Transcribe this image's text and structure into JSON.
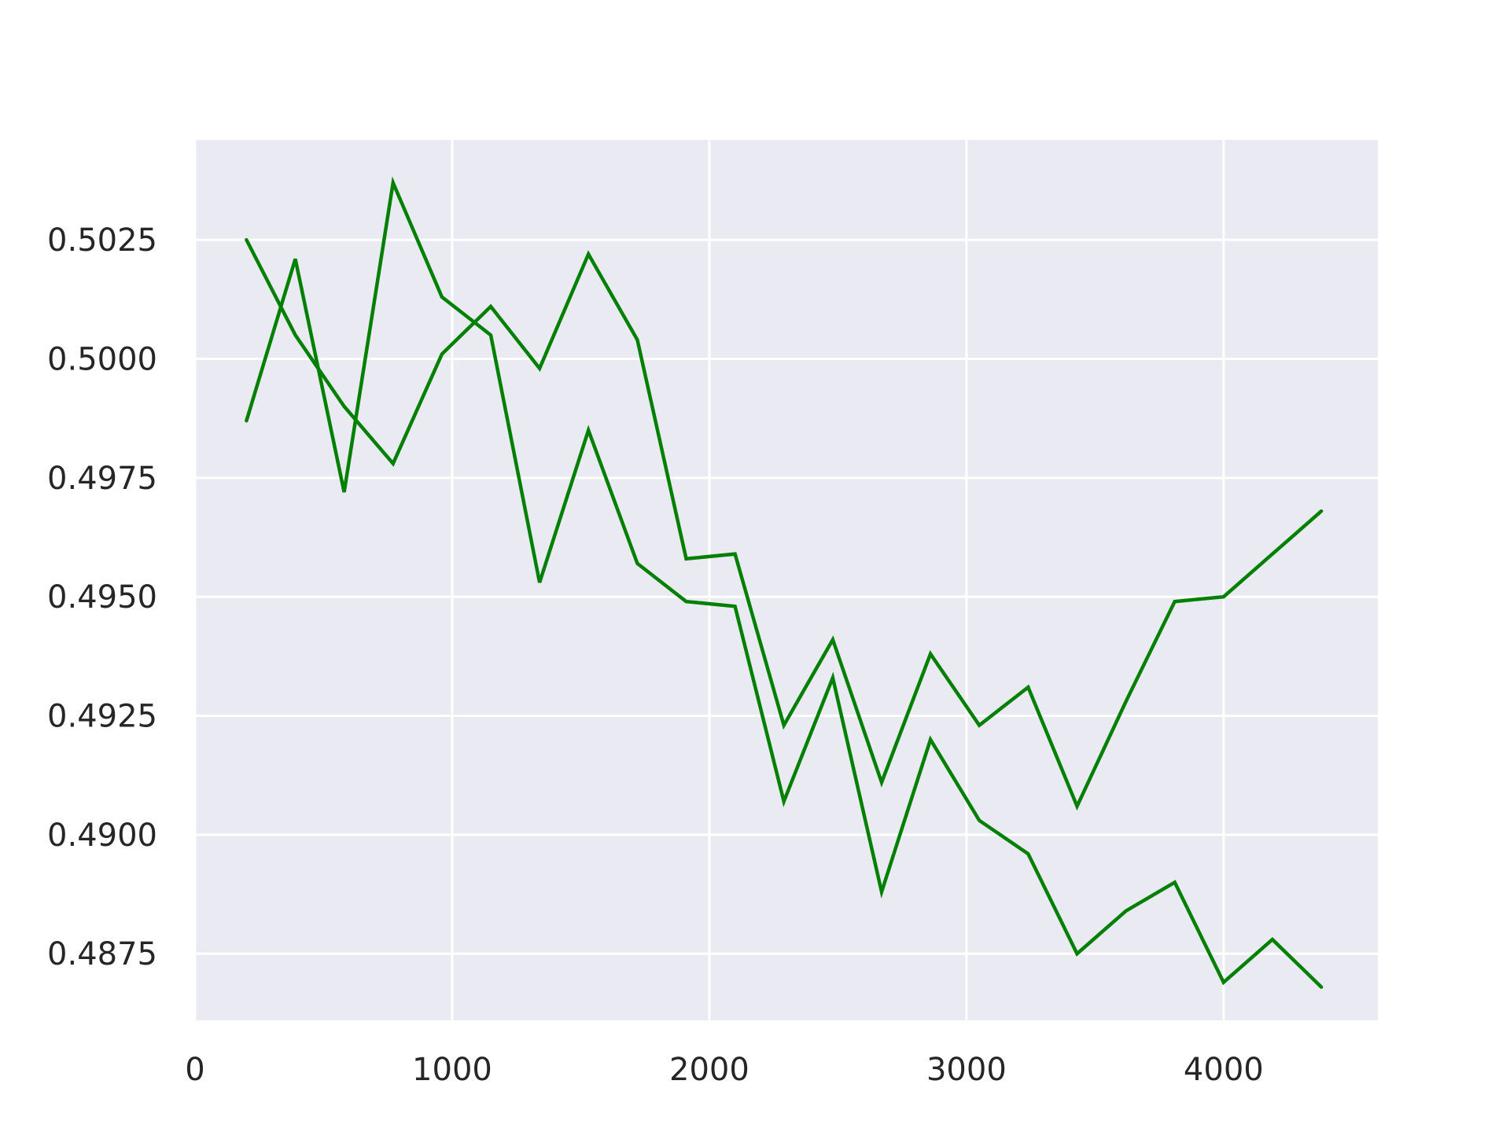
{
  "chart_data": {
    "type": "line",
    "title": "",
    "xlabel": "",
    "ylabel": "",
    "xlim": [
      0,
      4600
    ],
    "ylim": [
      0.4861,
      0.5046
    ],
    "grid": true,
    "background": "#EAEAF2",
    "grid_color": "#FFFFFF",
    "line_color": "#008000",
    "x_ticks": [
      0,
      1000,
      2000,
      3000,
      4000
    ],
    "x_tick_labels": [
      "0",
      "1000",
      "2000",
      "3000",
      "4000"
    ],
    "y_ticks": [
      0.4875,
      0.49,
      0.4925,
      0.495,
      0.4975,
      0.5,
      0.5025
    ],
    "y_tick_labels": [
      "0.4875",
      "0.4900",
      "0.4925",
      "0.4950",
      "0.4975",
      "0.5000",
      "0.5025"
    ],
    "x": [
      200,
      390,
      580,
      770,
      960,
      1150,
      1340,
      1530,
      1720,
      1910,
      2100,
      2290,
      2480,
      2670,
      2860,
      3050,
      3240,
      3430,
      3620,
      3810,
      4000,
      4190,
      4380
    ],
    "series": [
      {
        "values": [
          0.5025,
          0.5005,
          0.499,
          0.4978,
          0.5001,
          0.5011,
          0.4998,
          0.5022,
          0.5004,
          0.4958,
          0.4959,
          0.4923,
          0.4941,
          0.4911,
          0.4938,
          0.4923,
          0.4931,
          0.4906,
          0.4928,
          0.4949,
          0.495,
          0.4959,
          0.4968
        ]
      },
      {
        "values": [
          0.4987,
          0.5021,
          0.4972,
          0.5037,
          0.5013,
          0.5005,
          0.4953,
          0.4985,
          0.4957,
          0.4949,
          0.4948,
          0.4907,
          0.4933,
          0.4888,
          0.492,
          0.4903,
          0.4896,
          0.4875,
          0.4884,
          0.489,
          0.4869,
          0.4878,
          0.4868
        ]
      }
    ]
  }
}
